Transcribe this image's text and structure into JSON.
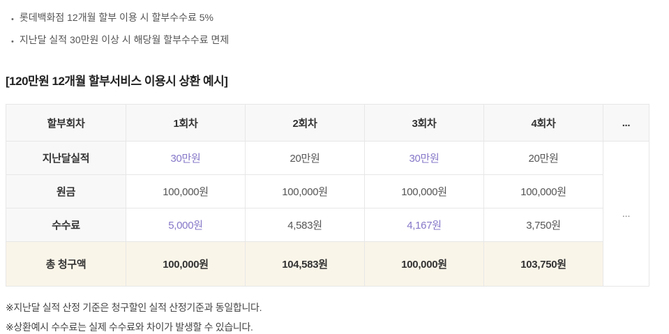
{
  "accent_color": "#8677c8",
  "total_row_bg": "#faf5e9",
  "bullets": [
    "롯데백화점 12개월 할부 이용 시 할부수수료 5%",
    "지난달 실적 30만원 이상 시 해당월 할부수수료 면제"
  ],
  "bullet_glyph": "•",
  "heading": "[120만원 12개월 할부서비스 이용시 상환 예시]",
  "table": {
    "headers": [
      "할부회차",
      "1회차",
      "2회차",
      "3회차",
      "4회차",
      "..."
    ],
    "ellipsis": "...",
    "rows": [
      {
        "label": "지난달실적",
        "cells": [
          "30만원",
          "20만원",
          "30만원",
          "20만원"
        ]
      },
      {
        "label": "원금",
        "cells": [
          "100,000원",
          "100,000원",
          "100,000원",
          "100,000원"
        ]
      },
      {
        "label": "수수료",
        "cells": [
          "5,000원",
          "4,583원",
          "4,167원",
          "3,750원"
        ]
      },
      {
        "label": "총 청구액",
        "cells": [
          "100,000원",
          "104,583원",
          "100,000원",
          "103,750원"
        ]
      }
    ]
  },
  "notes": [
    "※지난달 실적 산정 기준은 청구할인 실적 산정기준과 동일합니다.",
    "※상환예시 수수료는 실제 수수료와 차이가 발생할 수 있습니다."
  ]
}
